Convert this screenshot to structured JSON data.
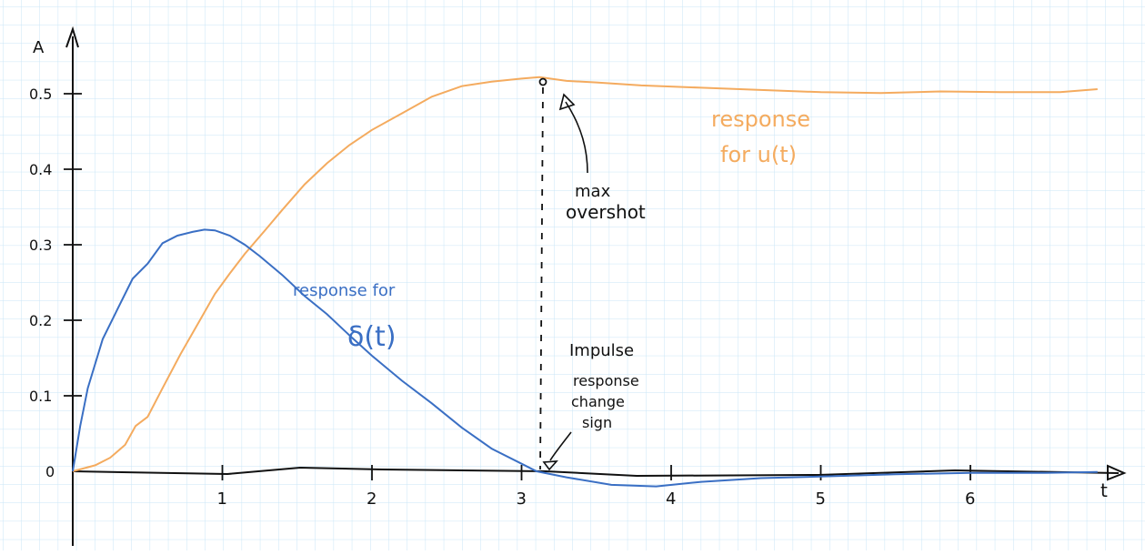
{
  "chart_data": {
    "type": "line",
    "xlabel": "t",
    "ylabel": "A",
    "xlim": [
      0,
      6.9
    ],
    "ylim": [
      -0.1,
      0.56
    ],
    "x_ticks": [
      "1",
      "2",
      "3",
      "4",
      "5",
      "6"
    ],
    "y_ticks": [
      "0",
      "0.1",
      "0.2",
      "0.3",
      "0.4",
      "0.5"
    ],
    "y_tick_values": [
      0,
      0.1,
      0.2,
      0.3,
      0.4,
      0.5
    ],
    "grid": true,
    "series": [
      {
        "name": "response for u(t)",
        "color": "#f4ab5f",
        "points": [
          [
            0,
            0
          ],
          [
            0.15,
            0.008
          ],
          [
            0.25,
            0.018
          ],
          [
            0.35,
            0.035
          ],
          [
            0.42,
            0.06
          ],
          [
            0.5,
            0.072
          ],
          [
            0.6,
            0.11
          ],
          [
            0.72,
            0.155
          ],
          [
            0.85,
            0.2
          ],
          [
            0.95,
            0.235
          ],
          [
            1.05,
            0.262
          ],
          [
            1.15,
            0.288
          ],
          [
            1.28,
            0.318
          ],
          [
            1.4,
            0.346
          ],
          [
            1.55,
            0.38
          ],
          [
            1.7,
            0.408
          ],
          [
            1.85,
            0.432
          ],
          [
            2.0,
            0.452
          ],
          [
            2.2,
            0.474
          ],
          [
            2.4,
            0.496
          ],
          [
            2.6,
            0.51
          ],
          [
            2.8,
            0.516
          ],
          [
            3.0,
            0.52
          ],
          [
            3.12,
            0.522
          ],
          [
            3.3,
            0.517
          ],
          [
            3.5,
            0.515
          ],
          [
            3.8,
            0.511
          ],
          [
            4.2,
            0.508
          ],
          [
            4.6,
            0.505
          ],
          [
            5.0,
            0.502
          ],
          [
            5.4,
            0.501
          ],
          [
            5.8,
            0.503
          ],
          [
            6.2,
            0.502
          ],
          [
            6.6,
            0.502
          ],
          [
            6.85,
            0.506
          ]
        ]
      },
      {
        "name": "response for δ(t)",
        "color": "#3a6fc4",
        "points": [
          [
            0,
            0
          ],
          [
            0.05,
            0.06
          ],
          [
            0.1,
            0.11
          ],
          [
            0.2,
            0.175
          ],
          [
            0.3,
            0.215
          ],
          [
            0.4,
            0.255
          ],
          [
            0.5,
            0.275
          ],
          [
            0.6,
            0.302
          ],
          [
            0.7,
            0.312
          ],
          [
            0.8,
            0.317
          ],
          [
            0.88,
            0.32
          ],
          [
            0.95,
            0.319
          ],
          [
            1.05,
            0.312
          ],
          [
            1.15,
            0.3
          ],
          [
            1.25,
            0.285
          ],
          [
            1.4,
            0.26
          ],
          [
            1.55,
            0.232
          ],
          [
            1.7,
            0.208
          ],
          [
            1.85,
            0.18
          ],
          [
            2.0,
            0.153
          ],
          [
            2.2,
            0.12
          ],
          [
            2.4,
            0.09
          ],
          [
            2.6,
            0.058
          ],
          [
            2.8,
            0.03
          ],
          [
            3.0,
            0.01
          ],
          [
            3.1,
            0.0
          ],
          [
            3.3,
            -0.008
          ],
          [
            3.6,
            -0.018
          ],
          [
            3.9,
            -0.02
          ],
          [
            4.2,
            -0.014
          ],
          [
            4.6,
            -0.009
          ],
          [
            5.0,
            -0.007
          ],
          [
            5.5,
            -0.004
          ],
          [
            6.0,
            -0.002
          ],
          [
            6.5,
            -0.002
          ],
          [
            6.85,
            -0.001
          ]
        ]
      }
    ]
  },
  "annotations": {
    "max_overshot_line1": "max",
    "max_overshot_line2": "overshot",
    "impulse_line1": "Impulse",
    "impulse_line2": "response",
    "impulse_line3": "change",
    "impulse_line4": "sign",
    "step_label_line1": "response",
    "step_label_line2": "for u(t)",
    "impulse_label_line1": "response for",
    "impulse_label_line2": "δ(t)"
  },
  "colors": {
    "grid": "#c9e6f7",
    "axis": "#111111",
    "step": "#f4ab5f",
    "impulse": "#3a6fc4"
  }
}
